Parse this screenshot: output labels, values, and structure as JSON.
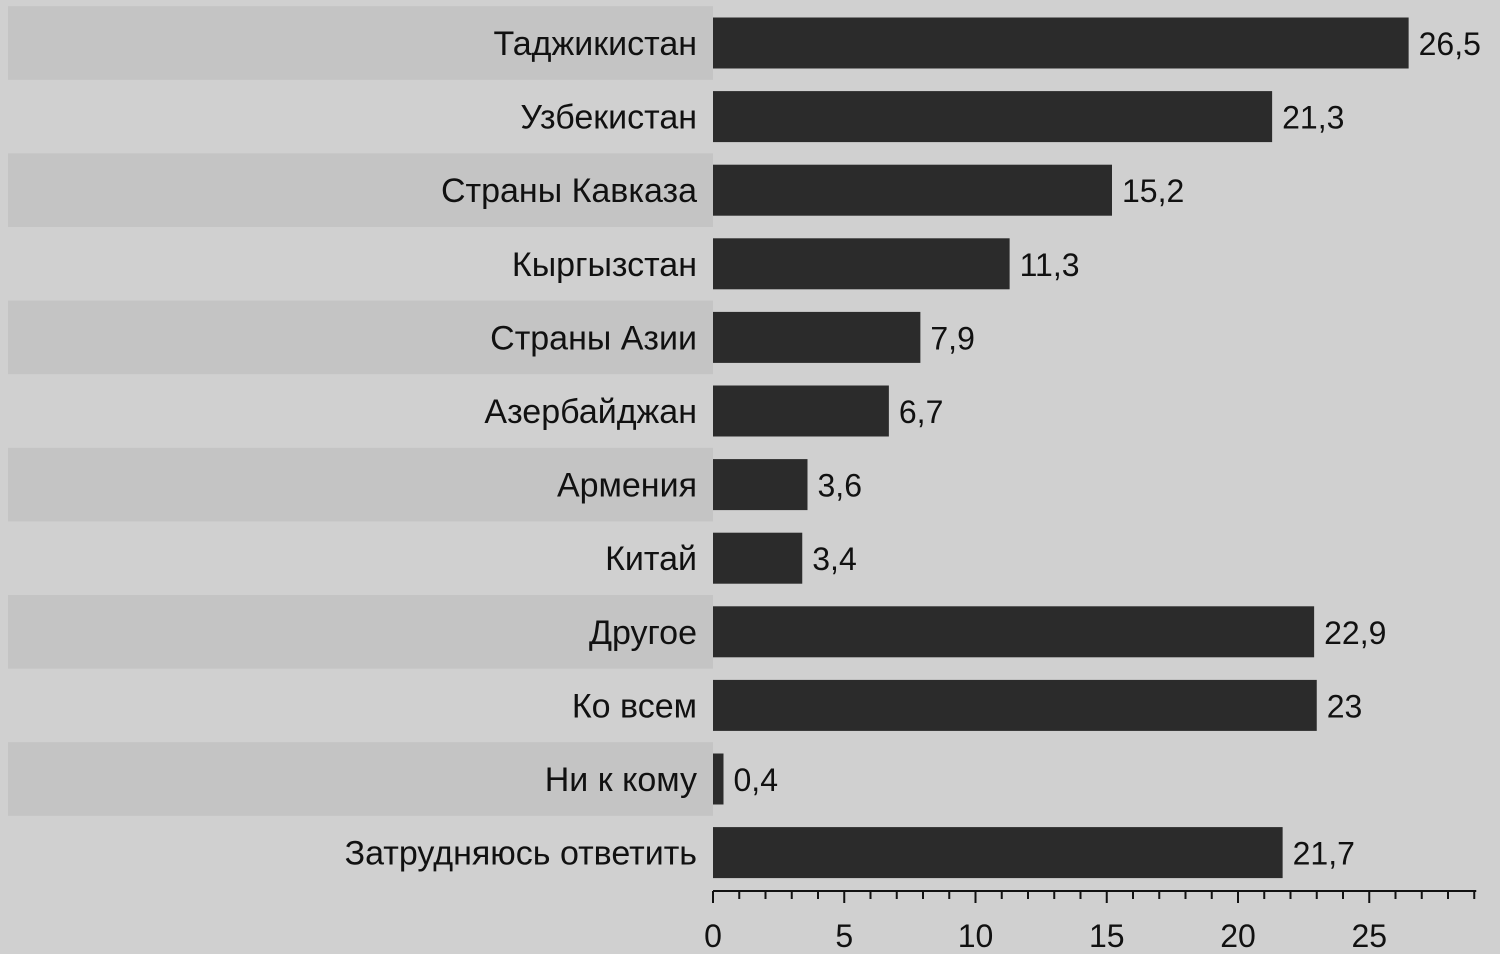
{
  "chart_data": {
    "type": "bar",
    "orientation": "horizontal",
    "categories": [
      "Таджикистан",
      "Узбекистан",
      "Страны Кавказа",
      "Кыргызстан",
      "Страны Азии",
      "Азербайджан",
      "Армения",
      "Китай",
      "Другое",
      "Ко всем",
      "Ни к кому",
      "Затрудняюсь ответить"
    ],
    "values": [
      26.5,
      21.3,
      15.2,
      11.3,
      7.9,
      6.7,
      3.6,
      3.4,
      22.9,
      23,
      0.4,
      21.7
    ],
    "value_labels": [
      "26,5",
      "21,3",
      "15,2",
      "11,3",
      "7,9",
      "6,7",
      "3,6",
      "3,4",
      "22,9",
      "23",
      "0,4",
      "21,7"
    ],
    "x_ticks": [
      0,
      5,
      10,
      15,
      20,
      25
    ],
    "x_tick_labels": [
      "0",
      "5",
      "10",
      "15",
      "20",
      "25"
    ],
    "xlim": [
      0,
      29
    ],
    "title": "",
    "xlabel": "",
    "ylabel": "",
    "grid": false,
    "legend": "none",
    "colors": {
      "bar": "#2b2b2b",
      "background": "#d0d0d0",
      "stripe_dark": "#c4c4c4",
      "stripe_light": "#d0d0d0",
      "text": "#111111"
    }
  }
}
